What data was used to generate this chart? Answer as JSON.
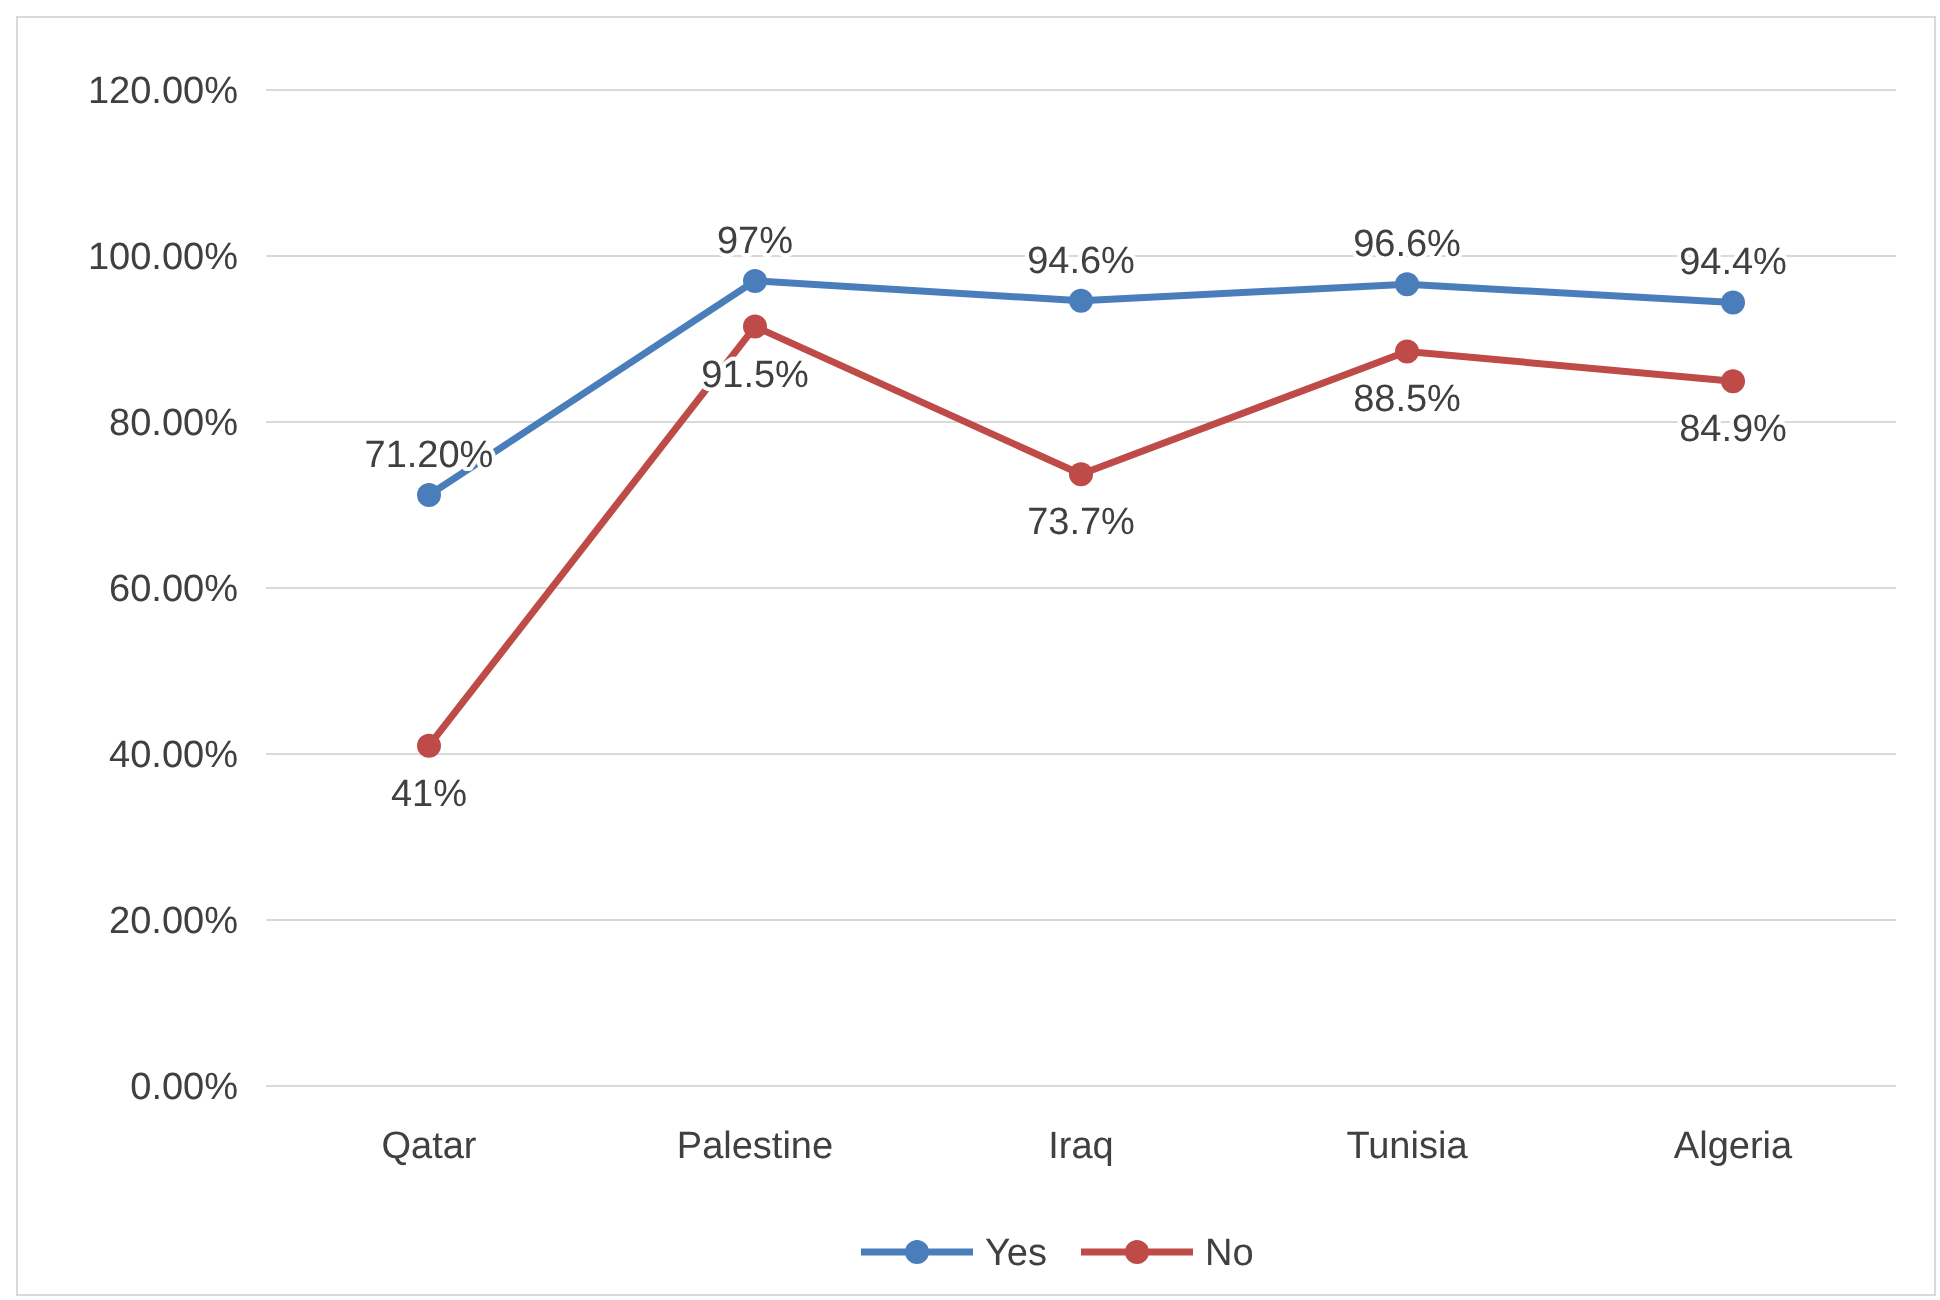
{
  "chart_data": {
    "type": "line",
    "categories": [
      "Qatar",
      "Palestine",
      "Iraq",
      "Tunisia",
      "Algeria"
    ],
    "series": [
      {
        "name": "Yes",
        "color": "#4a7ebb",
        "values": [
          71.2,
          97,
          94.6,
          96.6,
          94.4
        ],
        "value_labels": [
          "71.20%",
          "97%",
          "94.6%",
          "96.6%",
          "94.4%"
        ]
      },
      {
        "name": "No",
        "color": "#be4b48",
        "values": [
          41,
          91.5,
          73.7,
          88.5,
          84.9
        ],
        "value_labels": [
          "41%",
          "91.5%",
          "73.7%",
          "88.5%",
          "84.9%"
        ]
      }
    ],
    "ylim": [
      0,
      120
    ],
    "yticks": [
      {
        "value": 0,
        "label": "0.00%"
      },
      {
        "value": 20,
        "label": "20.00%"
      },
      {
        "value": 40,
        "label": "40.00%"
      },
      {
        "value": 60,
        "label": "60.00%"
      },
      {
        "value": 80,
        "label": "80.00%"
      },
      {
        "value": 100,
        "label": "100.00%"
      },
      {
        "value": 120,
        "label": "120.00%"
      }
    ],
    "grid": "y",
    "legend": "bottom",
    "marker": "circle",
    "line_style": "solid"
  }
}
